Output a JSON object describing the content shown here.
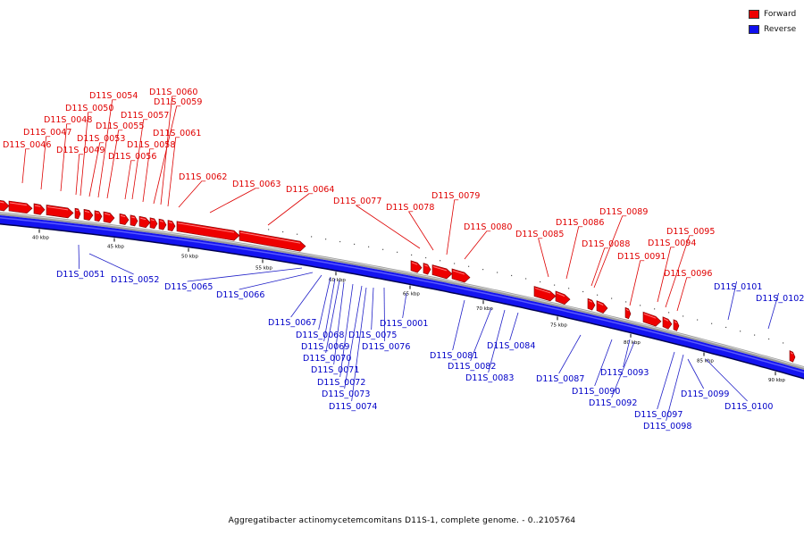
{
  "legend": {
    "forward": {
      "label": "Forward",
      "color": "#ee0000"
    },
    "reverse": {
      "label": "Reverse",
      "color": "#1010ee"
    }
  },
  "caption": "Aggregatibacter actinomycetemcomitans D11S-1, complete genome. - 0..2105764",
  "ticks": [
    "40 kbp",
    "45 kbp",
    "50 kbp",
    "55 kbp",
    "60 kbp",
    "65 kbp",
    "70 kbp",
    "75 kbp",
    "80 kbp",
    "85 kbp",
    "90 kbp"
  ],
  "forward_genes": [
    "D11S_0046",
    "D11S_0047",
    "D11S_0048",
    "D11S_0049",
    "D11S_0050",
    "D11S_0053",
    "D11S_0054",
    "D11S_0055",
    "D11S_0056",
    "D11S_0057",
    "D11S_0058",
    "D11S_0059",
    "D11S_0060",
    "D11S_0061",
    "D11S_0062",
    "D11S_0063",
    "D11S_0064",
    "D11S_0077",
    "D11S_0078",
    "D11S_0079",
    "D11S_0080",
    "D11S_0085",
    "D11S_0086",
    "D11S_0088",
    "D11S_0089",
    "D11S_0091",
    "D11S_0094",
    "D11S_0095",
    "D11S_0096"
  ],
  "reverse_genes": [
    "D11S_0051",
    "D11S_0052",
    "D11S_0065",
    "D11S_0066",
    "D11S_0067",
    "D11S_0068",
    "D11S_0069",
    "D11S_0070",
    "D11S_0071",
    "D11S_0072",
    "D11S_0073",
    "D11S_0074",
    "D11S_0075",
    "D11S_0076",
    "D11S_0001",
    "D11S_0081",
    "D11S_0082",
    "D11S_0083",
    "D11S_0084",
    "D11S_0087",
    "D11S_0090",
    "D11S_0092",
    "D11S_0093",
    "D11S_0097",
    "D11S_0098",
    "D11S_0099",
    "D11S_0100",
    "D11S_0101",
    "D11S_0102"
  ]
}
